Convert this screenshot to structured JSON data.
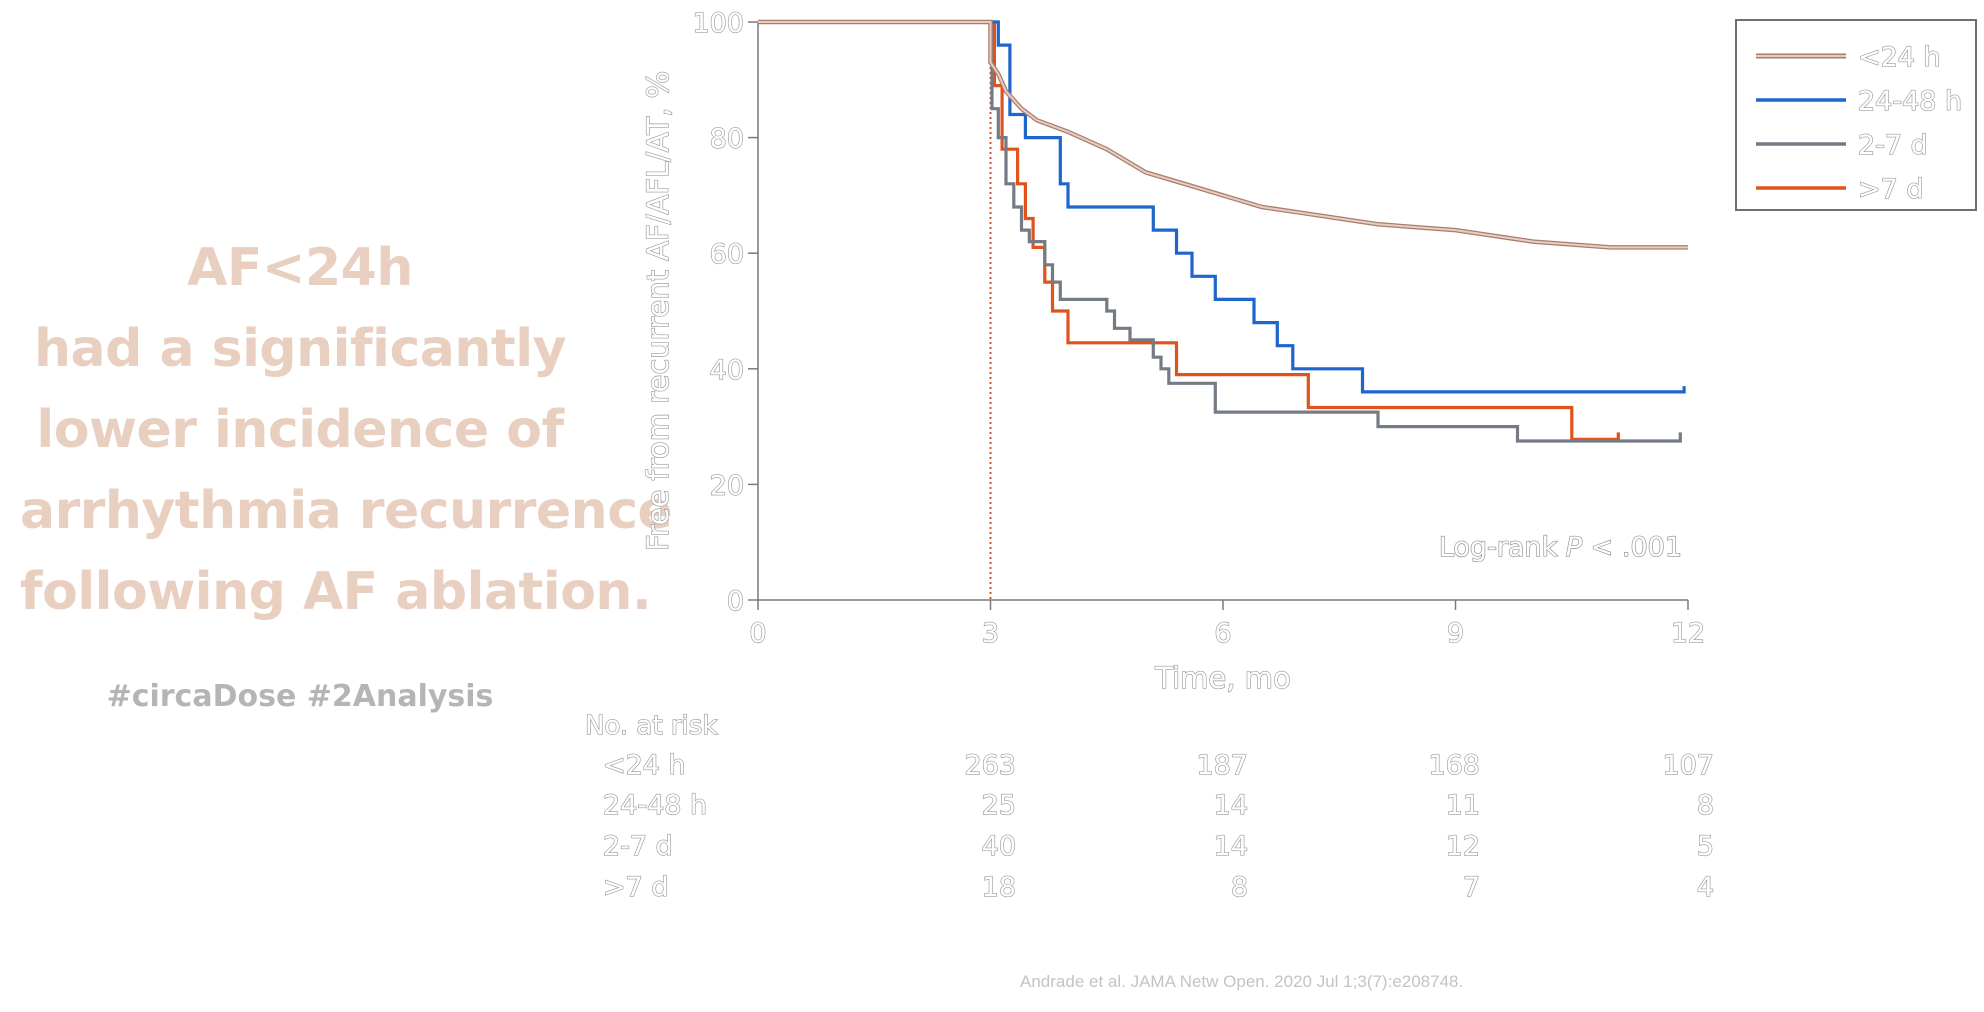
{
  "headline": {
    "lines": [
      "AF<24h",
      "had a significantly",
      "lower incidence of",
      "arrhythmia recurrence",
      "following AF ablation."
    ]
  },
  "hashtags": "#circaDose #2Analysis",
  "citation": "Andrade et al. JAMA Netw Open. 2020 Jul 1;3(7):e208748.",
  "colors": {
    "series_lt24h": "#c9a89b",
    "series_24_48h": "#1f66cc",
    "series_2_7d": "#747b87",
    "series_gt7d": "#e0531c",
    "axis": "#7a7a7a",
    "marker_line": "#d0552b"
  },
  "chart_data": {
    "type": "line",
    "subtype": "kaplan-meier",
    "xlabel": "Time, mo",
    "ylabel": "Free from recurrent AF/AFL/AT, %",
    "xlim": [
      0,
      12
    ],
    "ylim": [
      0,
      100
    ],
    "xticks": [
      0,
      3,
      6,
      9,
      12
    ],
    "yticks": [
      0,
      20,
      40,
      60,
      80,
      100
    ],
    "vertical_reference_x": 3,
    "annotation": {
      "prefix": "Log-rank ",
      "italic": "P",
      "suffix": " < .001"
    },
    "legend_position": "top-right",
    "series": [
      {
        "name": "<24 h",
        "color_key": "series_lt24h",
        "points": [
          [
            0,
            100
          ],
          [
            3,
            100
          ],
          [
            3,
            93
          ],
          [
            3.1,
            91
          ],
          [
            3.2,
            88
          ],
          [
            3.4,
            85
          ],
          [
            3.6,
            83
          ],
          [
            4.0,
            81
          ],
          [
            4.5,
            78
          ],
          [
            5.0,
            74
          ],
          [
            5.5,
            72
          ],
          [
            6.0,
            70
          ],
          [
            6.5,
            68
          ],
          [
            7.0,
            67
          ],
          [
            7.5,
            66
          ],
          [
            8.0,
            65
          ],
          [
            8.5,
            64.5
          ],
          [
            9.0,
            64
          ],
          [
            9.5,
            63
          ],
          [
            10.0,
            62
          ],
          [
            10.5,
            61.5
          ],
          [
            11.0,
            61
          ],
          [
            11.5,
            61
          ],
          [
            12,
            61
          ]
        ]
      },
      {
        "name": "24-48 h",
        "color_key": "series_24_48h",
        "points": [
          [
            0,
            100
          ],
          [
            3.1,
            100
          ],
          [
            3.1,
            96
          ],
          [
            3.25,
            96
          ],
          [
            3.25,
            84
          ],
          [
            3.45,
            84
          ],
          [
            3.45,
            80
          ],
          [
            3.9,
            80
          ],
          [
            3.9,
            72
          ],
          [
            4.0,
            72
          ],
          [
            4.0,
            68
          ],
          [
            5.1,
            68
          ],
          [
            5.1,
            64
          ],
          [
            5.4,
            64
          ],
          [
            5.4,
            60
          ],
          [
            5.6,
            60
          ],
          [
            5.6,
            56
          ],
          [
            5.9,
            56
          ],
          [
            5.9,
            52
          ],
          [
            6.4,
            52
          ],
          [
            6.4,
            48
          ],
          [
            6.7,
            48
          ],
          [
            6.7,
            44
          ],
          [
            6.9,
            44
          ],
          [
            6.9,
            40
          ],
          [
            7.8,
            40
          ],
          [
            7.8,
            36
          ],
          [
            11.95,
            36
          ],
          [
            11.95,
            37
          ]
        ]
      },
      {
        "name": "2-7 d",
        "color_key": "series_2_7d",
        "points": [
          [
            0,
            100
          ],
          [
            3.02,
            100
          ],
          [
            3.02,
            85
          ],
          [
            3.1,
            85
          ],
          [
            3.1,
            80
          ],
          [
            3.2,
            80
          ],
          [
            3.2,
            72
          ],
          [
            3.3,
            72
          ],
          [
            3.3,
            68
          ],
          [
            3.4,
            68
          ],
          [
            3.4,
            64
          ],
          [
            3.5,
            64
          ],
          [
            3.5,
            62
          ],
          [
            3.7,
            62
          ],
          [
            3.7,
            58
          ],
          [
            3.8,
            58
          ],
          [
            3.8,
            55
          ],
          [
            3.9,
            55
          ],
          [
            3.9,
            52
          ],
          [
            4.5,
            52
          ],
          [
            4.5,
            50
          ],
          [
            4.6,
            50
          ],
          [
            4.6,
            47
          ],
          [
            4.8,
            47
          ],
          [
            4.8,
            45
          ],
          [
            5.1,
            45
          ],
          [
            5.1,
            42
          ],
          [
            5.2,
            42
          ],
          [
            5.2,
            40
          ],
          [
            5.3,
            40
          ],
          [
            5.3,
            37.5
          ],
          [
            5.9,
            37.5
          ],
          [
            5.9,
            32.5
          ],
          [
            8.0,
            32.5
          ],
          [
            8.0,
            30
          ],
          [
            9.8,
            30
          ],
          [
            9.8,
            27.5
          ],
          [
            11.9,
            27.5
          ],
          [
            11.9,
            29
          ]
        ]
      },
      {
        "name": ">7 d",
        "color_key": "series_gt7d",
        "points": [
          [
            0,
            100
          ],
          [
            3.05,
            100
          ],
          [
            3.05,
            89
          ],
          [
            3.15,
            89
          ],
          [
            3.15,
            78
          ],
          [
            3.35,
            78
          ],
          [
            3.35,
            72
          ],
          [
            3.45,
            72
          ],
          [
            3.45,
            66
          ],
          [
            3.55,
            66
          ],
          [
            3.55,
            61
          ],
          [
            3.7,
            61
          ],
          [
            3.7,
            55
          ],
          [
            3.8,
            55
          ],
          [
            3.8,
            50
          ],
          [
            4.0,
            50
          ],
          [
            4.0,
            44.5
          ],
          [
            5.4,
            44.5
          ],
          [
            5.4,
            39
          ],
          [
            7.1,
            39
          ],
          [
            7.1,
            33.3
          ],
          [
            10.5,
            33.3
          ],
          [
            10.5,
            27.8
          ],
          [
            11.1,
            27.8
          ],
          [
            11.1,
            29
          ]
        ]
      }
    ],
    "risk_table": {
      "title": "No. at risk",
      "times": [
        3,
        6,
        9,
        12
      ],
      "rows": [
        {
          "label": "<24 h",
          "values": [
            "263",
            "187",
            "168",
            "107"
          ]
        },
        {
          "label": "24-48 h",
          "values": [
            "25",
            "14",
            "11",
            "8"
          ]
        },
        {
          "label": "2-7 d",
          "values": [
            "40",
            "14",
            "12",
            "5"
          ]
        },
        {
          "label": ">7 d",
          "values": [
            "18",
            "8",
            "7",
            "4"
          ]
        }
      ]
    }
  }
}
